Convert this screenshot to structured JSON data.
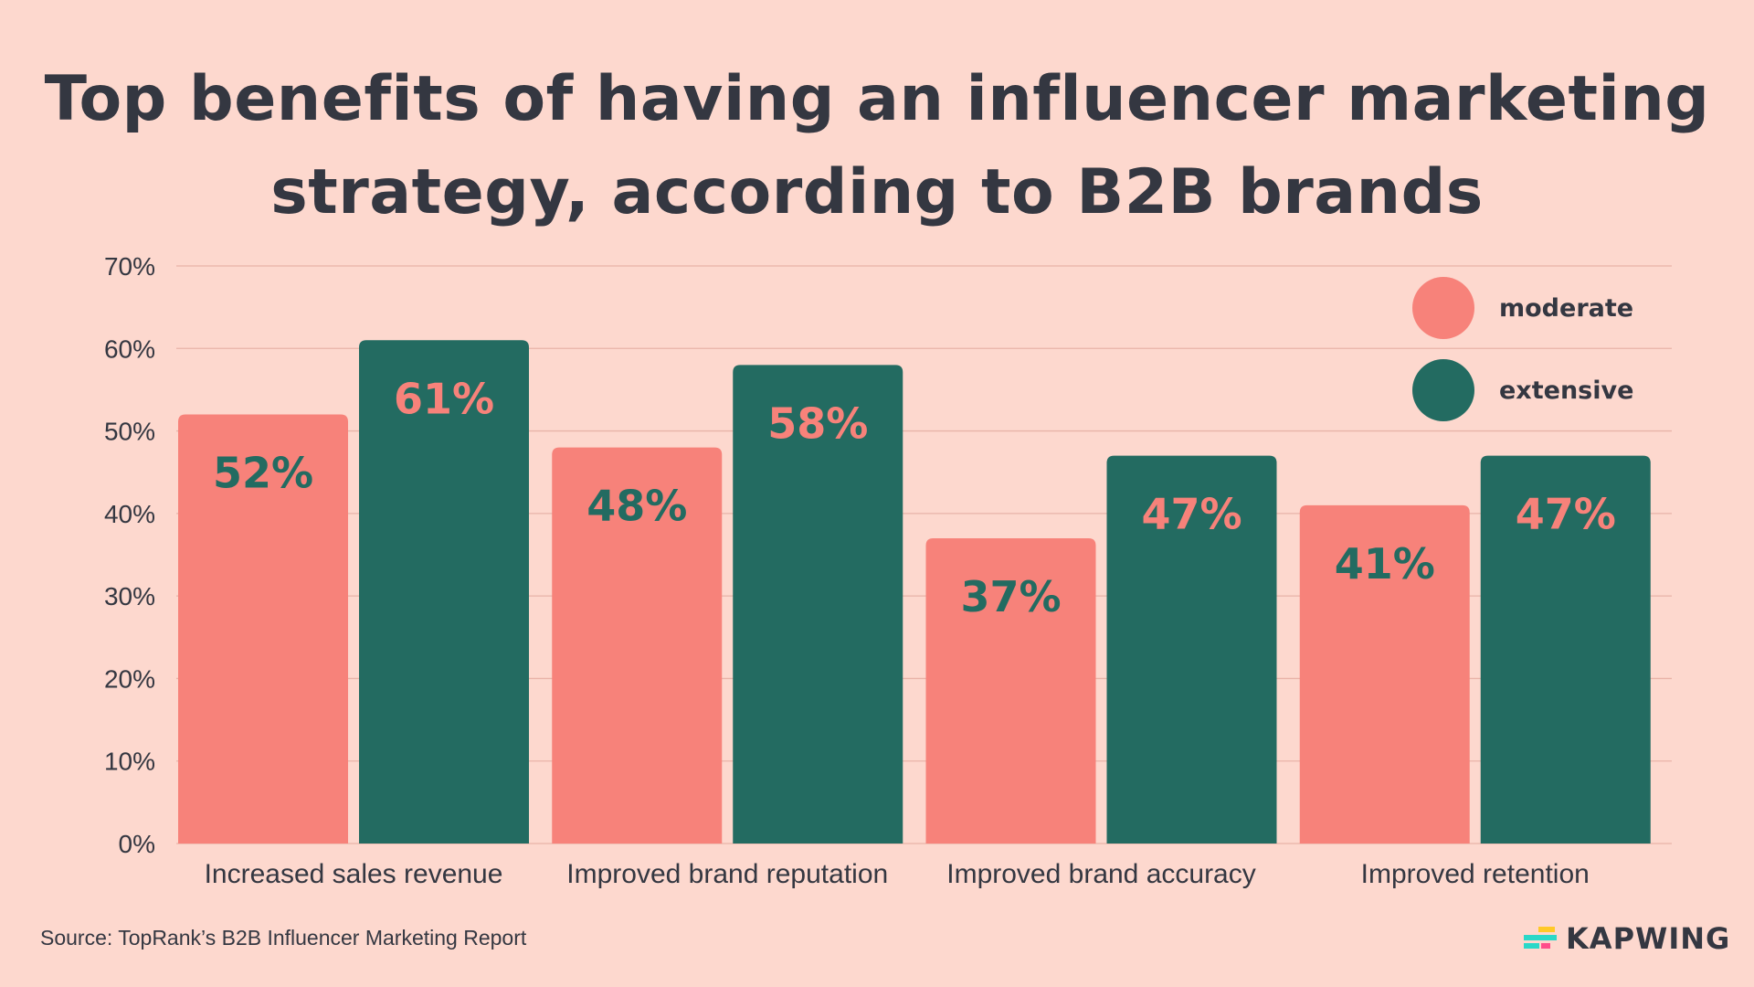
{
  "chart_data": {
    "type": "bar",
    "title": "Top benefits of having an influencer marketing strategy, according to B2B brands",
    "title_lines": [
      "Top benefits of having an influencer marketing",
      "strategy, according to B2B brands"
    ],
    "categories": [
      "Increased sales revenue",
      "Improved brand reputation",
      "Improved brand accuracy",
      "Improved retention"
    ],
    "series": [
      {
        "name": "moderate",
        "values": [
          52,
          48,
          37,
          41
        ],
        "color": "#f7827a",
        "label_color": "#236b61"
      },
      {
        "name": "extensive",
        "values": [
          61,
          58,
          47,
          47
        ],
        "color": "#236b61",
        "label_color": "#f7827a"
      }
    ],
    "data_labels": [
      [
        "52%",
        "48%",
        "37%",
        "41%"
      ],
      [
        "61%",
        "58%",
        "47%",
        "47%"
      ]
    ],
    "yticks": [
      "0%",
      "10%",
      "20%",
      "30%",
      "40%",
      "50%",
      "60%",
      "70%"
    ],
    "ylim": [
      0,
      70
    ],
    "xlabel": "",
    "ylabel": "",
    "grid": true,
    "legend_position": "top-right"
  },
  "source": "Source: TopRank’s B2B Influencer Marketing Report",
  "brand": "KAPWING"
}
